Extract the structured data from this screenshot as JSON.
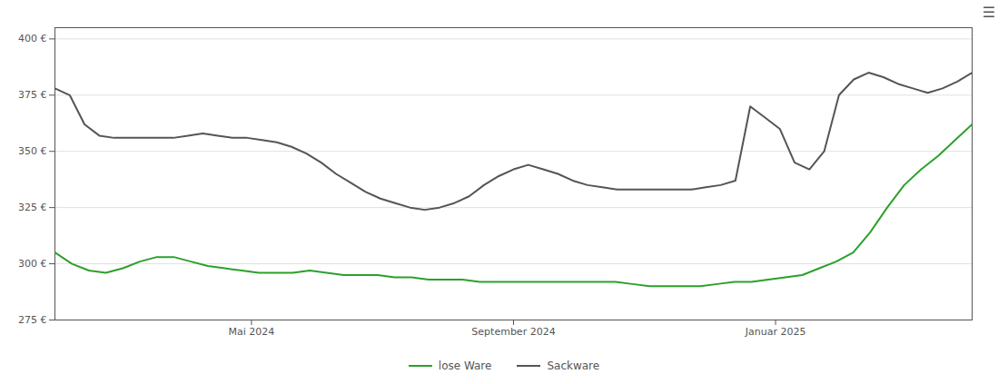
{
  "chart_data": {
    "type": "line",
    "title": "",
    "xlim": [
      0,
      14
    ],
    "xticks": [
      {
        "value": 3,
        "label": "Mai 2024"
      },
      {
        "value": 7,
        "label": "September 2024"
      },
      {
        "value": 11,
        "label": "Januar 2025"
      }
    ],
    "ylim": [
      275,
      405
    ],
    "yticks": [
      {
        "value": 275,
        "label": "275 €"
      },
      {
        "value": 300,
        "label": "300 €"
      },
      {
        "value": 325,
        "label": "325 €"
      },
      {
        "value": 350,
        "label": "350 €"
      },
      {
        "value": 375,
        "label": "375 €"
      },
      {
        "value": 400,
        "label": "400 €"
      }
    ],
    "grid": true,
    "legend": "bottom",
    "annotations": [
      "☰"
    ],
    "series": [
      {
        "name": "lose Ware",
        "color": "#2ca02c",
        "values": [
          305,
          300,
          297,
          296,
          298,
          301,
          303,
          303,
          301,
          299,
          298,
          297,
          296,
          296,
          296,
          297,
          296,
          295,
          295,
          295,
          294,
          294,
          293,
          293,
          293,
          292,
          292,
          292,
          292,
          292,
          292,
          292,
          292,
          292,
          291,
          290,
          290,
          290,
          290,
          291,
          292,
          292,
          293,
          294,
          295,
          298,
          301,
          305,
          314,
          325,
          335,
          342,
          348,
          355,
          362
        ]
      },
      {
        "name": "Sackware",
        "color": "#555555",
        "values": [
          378,
          375,
          362,
          357,
          356,
          356,
          356,
          356,
          356,
          357,
          358,
          357,
          356,
          356,
          355,
          354,
          352,
          349,
          345,
          340,
          336,
          332,
          329,
          327,
          325,
          324,
          325,
          327,
          330,
          335,
          339,
          342,
          344,
          342,
          340,
          337,
          335,
          334,
          333,
          333,
          333,
          333,
          333,
          333,
          334,
          335,
          337,
          370,
          365,
          360,
          345,
          342,
          350,
          375,
          382,
          385,
          383,
          380,
          378,
          376,
          378,
          381,
          385
        ]
      }
    ]
  }
}
